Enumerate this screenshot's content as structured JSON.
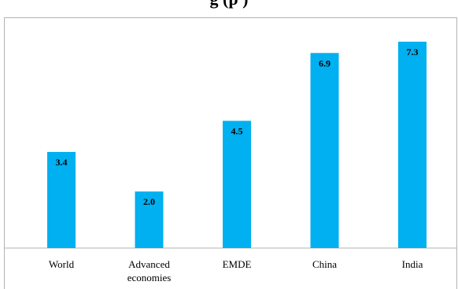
{
  "title_visible_fragment": "g     (p     )",
  "chart_data": {
    "type": "bar",
    "categories": [
      "World",
      "Advanced economies",
      "EMDE",
      "China",
      "India"
    ],
    "category_lines": [
      [
        "World"
      ],
      [
        "Advanced",
        "economies"
      ],
      [
        "EMDE"
      ],
      [
        "China"
      ],
      [
        "India"
      ]
    ],
    "values": [
      3.4,
      2.0,
      4.5,
      6.9,
      7.3
    ],
    "value_labels": [
      "3.4",
      "2.0",
      "4.5",
      "6.9",
      "7.3"
    ],
    "ylim": [
      0,
      8
    ],
    "grid": false,
    "legend": "none",
    "colors": {
      "bar": "#00b0f0",
      "axis": "#b3b3b3"
    }
  }
}
